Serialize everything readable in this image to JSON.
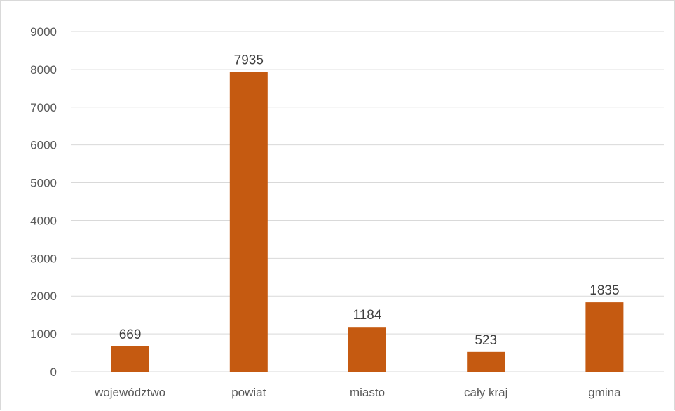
{
  "chart_data": {
    "type": "bar",
    "title": "",
    "xlabel": "",
    "ylabel": "",
    "categories": [
      "województwo",
      "powiat",
      "miasto",
      "cały kraj",
      "gmina"
    ],
    "values": [
      669,
      7935,
      1184,
      523,
      1835
    ],
    "data_labels": [
      "669",
      "7935",
      "1184",
      "523",
      "1835"
    ],
    "ylim": [
      0,
      9000
    ],
    "yticks": [
      0,
      1000,
      2000,
      3000,
      4000,
      5000,
      6000,
      7000,
      8000,
      9000
    ],
    "ytick_labels": [
      "0",
      "1000",
      "2000",
      "3000",
      "4000",
      "5000",
      "6000",
      "7000",
      "8000",
      "9000"
    ],
    "grid": true,
    "legend": "none",
    "bar_color": "#C55A11"
  }
}
